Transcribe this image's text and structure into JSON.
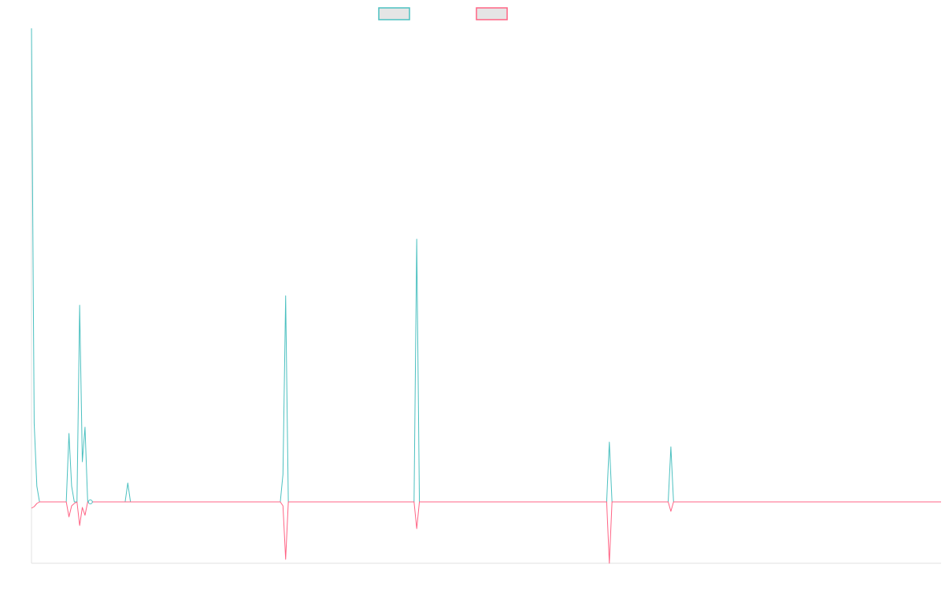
{
  "chart_data": {
    "type": "line",
    "title": "",
    "xlabel": "",
    "ylabel": "",
    "x_range": [
      0,
      340
    ],
    "ylim": [
      -78,
      602
    ],
    "grid": false,
    "legend_position": "top-center",
    "default_value": 0,
    "series": [
      {
        "name": "",
        "color": "#4bc0c0",
        "legend_fill": "#e5e5e5",
        "points": [
          [
            0,
            602
          ],
          [
            1,
            100
          ],
          [
            2,
            20
          ],
          [
            3,
            0
          ],
          [
            13,
            0
          ],
          [
            14,
            87
          ],
          [
            15,
            20
          ],
          [
            16,
            0
          ],
          [
            17,
            0
          ],
          [
            18,
            250
          ],
          [
            19,
            51
          ],
          [
            20,
            95
          ],
          [
            21,
            0
          ],
          [
            22,
            1
          ],
          [
            23,
            0
          ],
          [
            35,
            0
          ],
          [
            36,
            24
          ],
          [
            37,
            0
          ],
          [
            93,
            0
          ],
          [
            94,
            35
          ],
          [
            95,
            262
          ],
          [
            96,
            0
          ],
          [
            143,
            0
          ],
          [
            144,
            334
          ],
          [
            145,
            0
          ],
          [
            215,
            0
          ],
          [
            216,
            76
          ],
          [
            217,
            0
          ],
          [
            238,
            0
          ],
          [
            239,
            70
          ],
          [
            240,
            0
          ]
        ]
      },
      {
        "name": "",
        "color": "#ff6384",
        "legend_fill": "#e5e5e5",
        "points": [
          [
            0,
            -8
          ],
          [
            1,
            -6
          ],
          [
            2,
            -2
          ],
          [
            3,
            0
          ],
          [
            13,
            0
          ],
          [
            14,
            -19
          ],
          [
            15,
            -5
          ],
          [
            16,
            -2
          ],
          [
            17,
            0
          ],
          [
            18,
            -30
          ],
          [
            19,
            -7
          ],
          [
            20,
            -17
          ],
          [
            21,
            0
          ],
          [
            22,
            -2
          ],
          [
            23,
            0
          ],
          [
            94,
            -5
          ],
          [
            95,
            -73
          ],
          [
            96,
            0
          ],
          [
            143,
            0
          ],
          [
            144,
            -34
          ],
          [
            145,
            0
          ],
          [
            215,
            0
          ],
          [
            216,
            -78
          ],
          [
            217,
            0
          ],
          [
            238,
            0
          ],
          [
            239,
            -12
          ],
          [
            240,
            0
          ]
        ]
      }
    ]
  }
}
